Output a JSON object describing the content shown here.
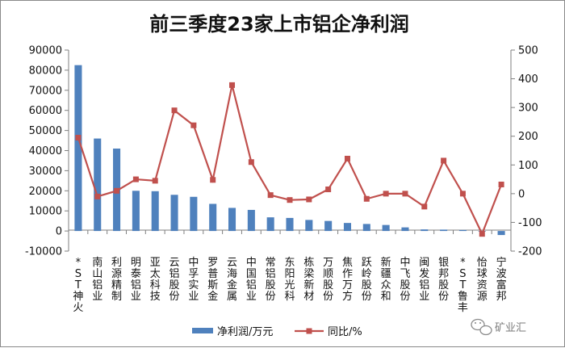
{
  "chart_data": {
    "type": "bar+line",
    "title": "前三季度23家上市铝企净利润",
    "categories": [
      "*ST神火",
      "南山铝业",
      "利源精制",
      "明泰铝业",
      "亚太科技",
      "云铝股份",
      "中孚实业",
      "罗普斯金",
      "云海金属",
      "中国铝业",
      "常铝股份",
      "东阳光科",
      "栋梁新材",
      "万顺股份",
      "焦作万方",
      "跃岭股份",
      "新疆众和",
      "中飞股份",
      "闽发铝业",
      "银邦股份",
      "*ST鲁丰",
      "怡球资源",
      "宁波富邦"
    ],
    "series": [
      {
        "name": "净利润/万元",
        "type": "bar",
        "axis": "left",
        "color": "#4f81bd",
        "values": [
          82500,
          46000,
          41000,
          20000,
          19800,
          18000,
          17000,
          13500,
          11500,
          10500,
          6800,
          6500,
          5500,
          5000,
          4000,
          3500,
          3000,
          1800,
          800,
          700,
          500,
          -200,
          -2000
        ]
      },
      {
        "name": "同比/%",
        "type": "line",
        "axis": "right",
        "color": "#c0504d",
        "values": [
          195,
          -10,
          10,
          50,
          45,
          290,
          238,
          48,
          378,
          110,
          -5,
          -22,
          -20,
          15,
          122,
          -18,
          0,
          0,
          -45,
          115,
          0,
          -140,
          32
        ]
      }
    ],
    "yleft": {
      "min": -10000,
      "max": 90000,
      "step": 10000,
      "ticks": [
        "-10000",
        "0",
        "10000",
        "20000",
        "30000",
        "40000",
        "50000",
        "60000",
        "70000",
        "80000",
        "90000"
      ]
    },
    "yright": {
      "min": -200,
      "max": 500,
      "step": 100,
      "ticks": [
        "-200",
        "-100",
        "0",
        "100",
        "200",
        "300",
        "400",
        "500"
      ]
    },
    "legend_position": "bottom",
    "grid": false
  },
  "watermark": "矿业汇"
}
